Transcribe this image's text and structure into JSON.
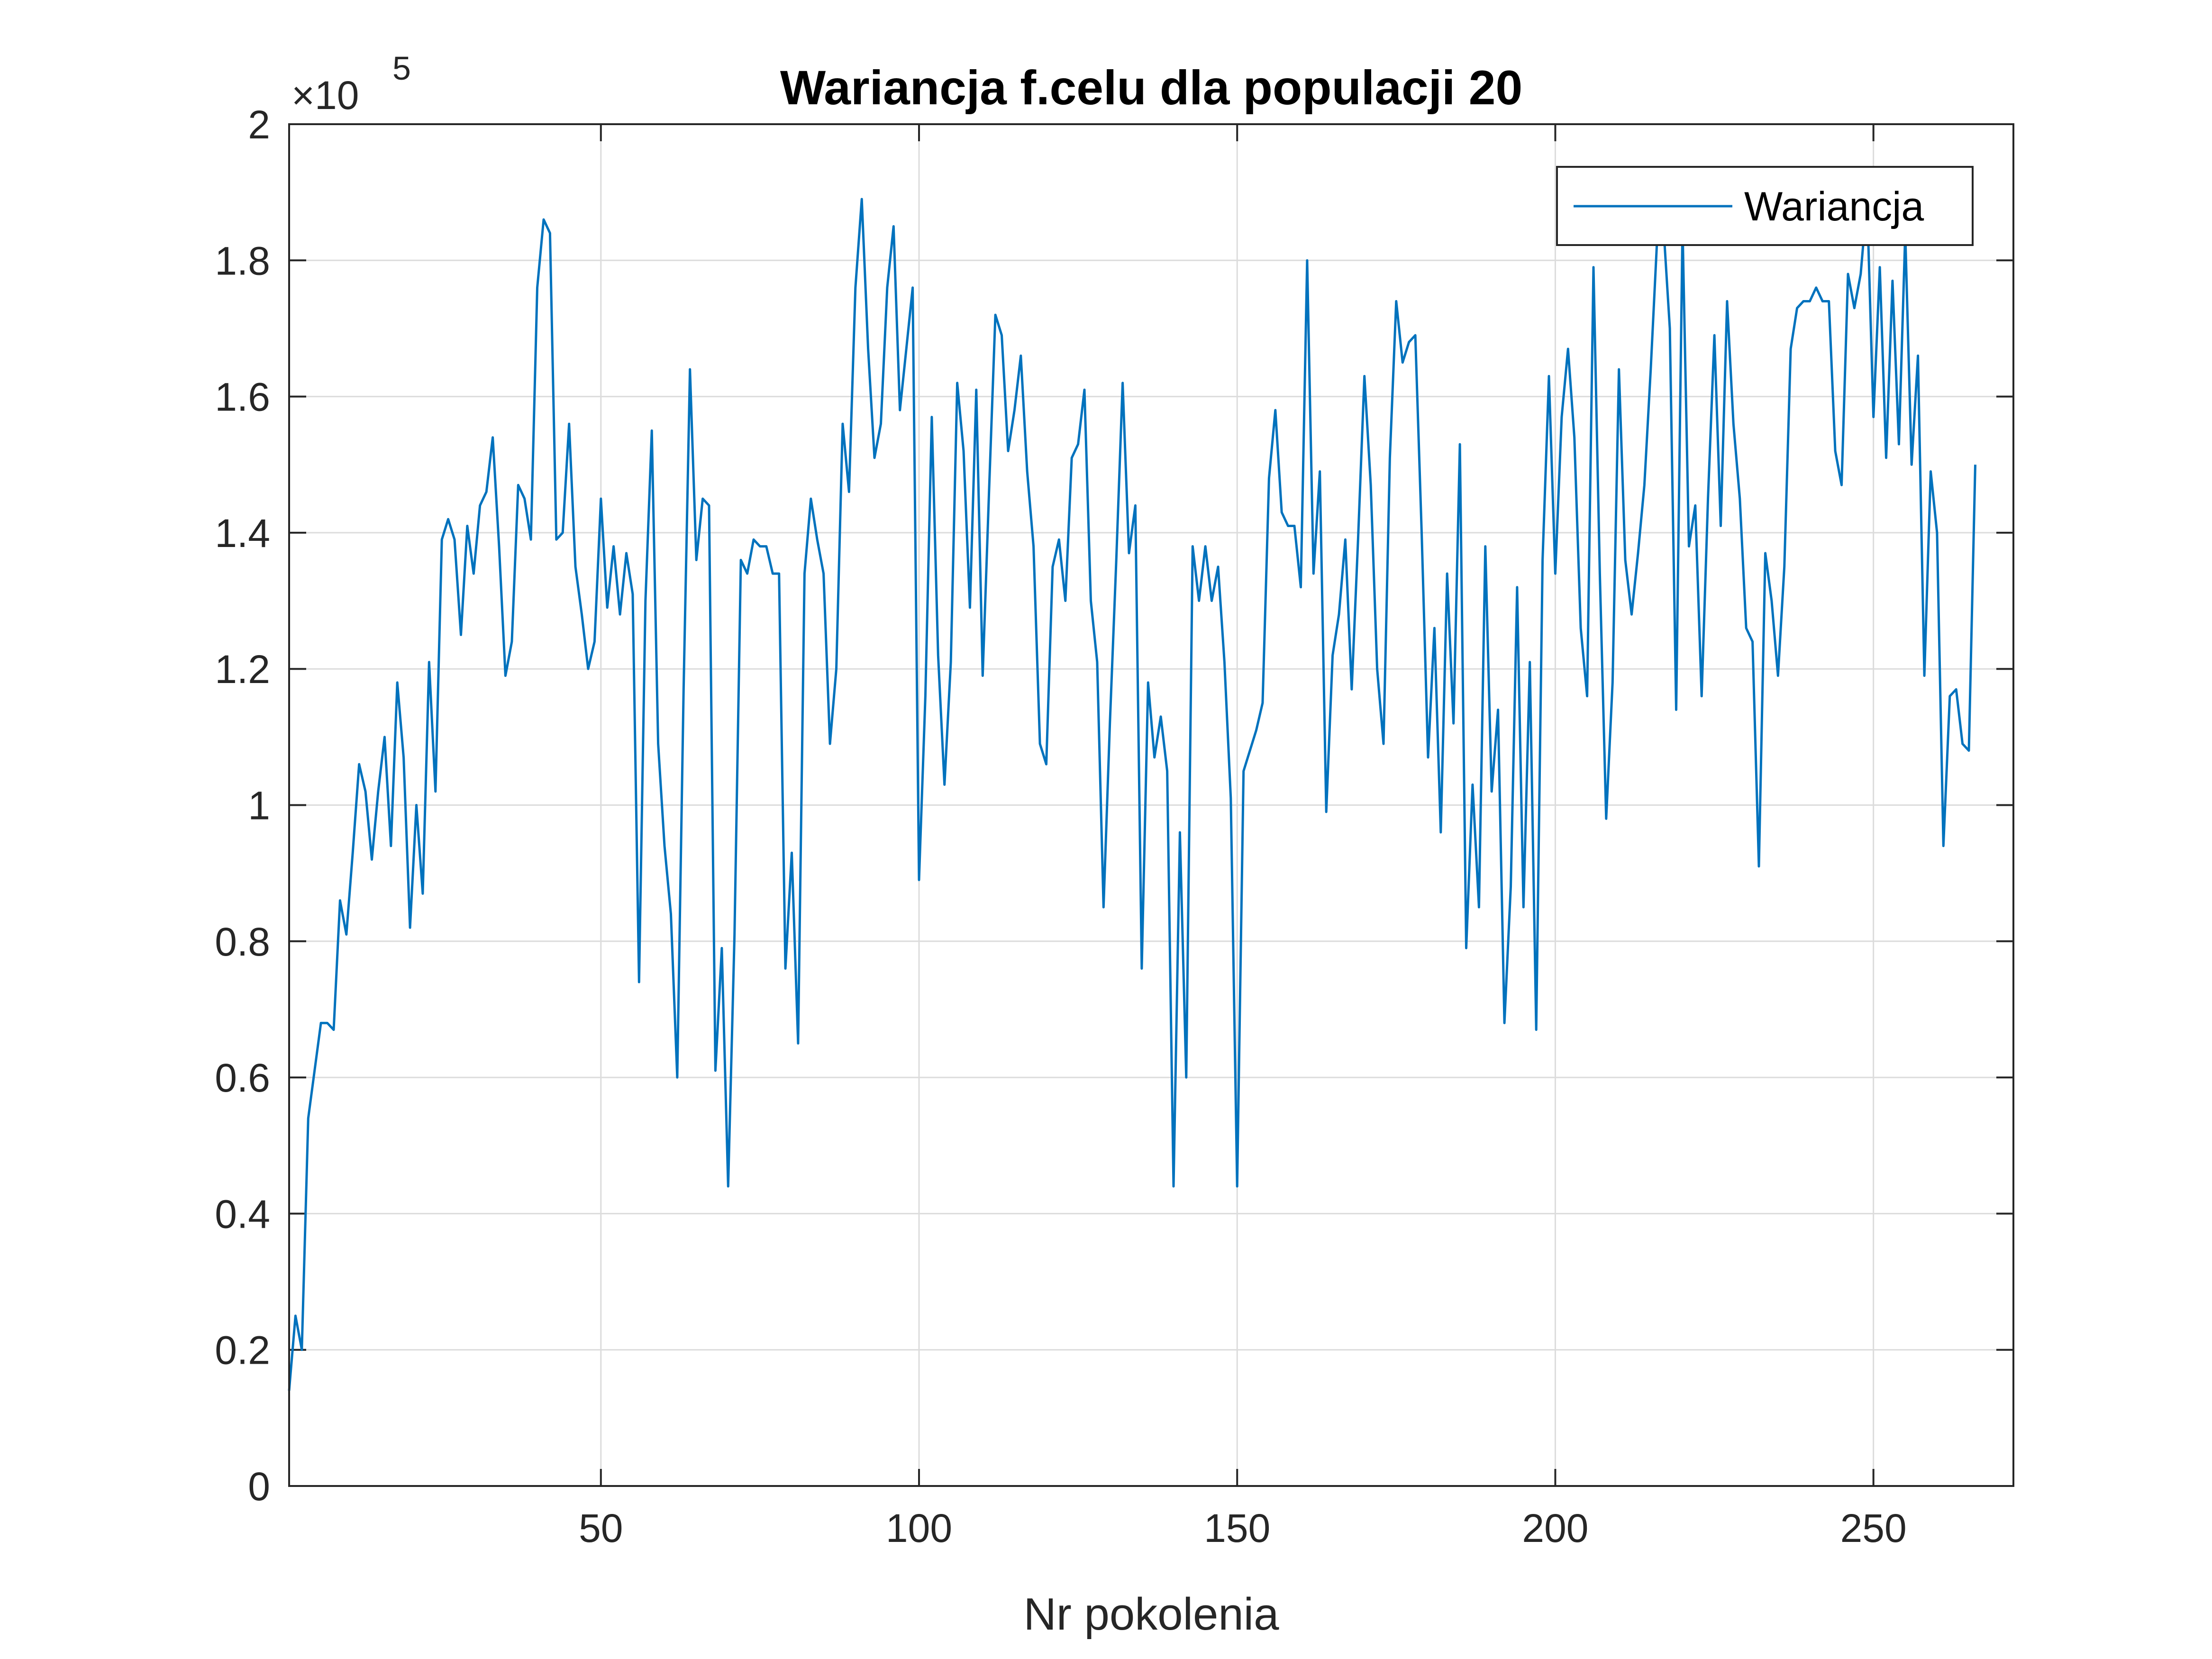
{
  "chart_data": {
    "type": "line",
    "title": "Wariancja f.celu dla populacji 20",
    "xlabel": "Nr pokolenia",
    "ylabel": "",
    "xlim": [
      1,
      272
    ],
    "ylim": [
      0,
      2
    ],
    "y_exponent_base": "×10",
    "y_exponent_power": "5",
    "xticks": [
      50,
      100,
      150,
      200,
      250
    ],
    "xtick_labels": [
      "50",
      "100",
      "150",
      "200",
      "250"
    ],
    "yticks": [
      0,
      0.2,
      0.4,
      0.6,
      0.8,
      1,
      1.2,
      1.4,
      1.6,
      1.8,
      2
    ],
    "ytick_labels": [
      "0",
      "0.2",
      "0.4",
      "0.6",
      "0.8",
      "1",
      "1.2",
      "1.4",
      "1.6",
      "1.8",
      "2"
    ],
    "grid": true,
    "legend_position": "top-right",
    "series": [
      {
        "name": "Wariancja",
        "color": "#0072BD",
        "values": [
          0.14,
          0.25,
          0.2,
          0.54,
          0.61,
          0.68,
          0.68,
          0.67,
          0.86,
          0.81,
          0.93,
          1.06,
          1.02,
          0.92,
          1.02,
          1.1,
          0.94,
          1.18,
          1.07,
          0.82,
          1.0,
          0.87,
          1.21,
          1.02,
          1.39,
          1.42,
          1.39,
          1.25,
          1.41,
          1.34,
          1.44,
          1.46,
          1.54,
          1.38,
          1.19,
          1.24,
          1.47,
          1.45,
          1.39,
          1.76,
          1.86,
          1.84,
          1.39,
          1.4,
          1.56,
          1.35,
          1.28,
          1.2,
          1.24,
          1.45,
          1.29,
          1.38,
          1.28,
          1.37,
          1.31,
          0.74,
          1.3,
          1.55,
          1.09,
          0.94,
          0.84,
          0.6,
          1.17,
          1.64,
          1.36,
          1.45,
          1.44,
          0.61,
          0.79,
          0.44,
          0.81,
          1.36,
          1.34,
          1.39,
          1.38,
          1.38,
          1.34,
          1.34,
          0.76,
          0.93,
          0.65,
          1.34,
          1.45,
          1.39,
          1.34,
          1.09,
          1.2,
          1.56,
          1.46,
          1.76,
          1.89,
          1.67,
          1.51,
          1.56,
          1.76,
          1.85,
          1.58,
          1.67,
          1.76,
          0.89,
          1.16,
          1.57,
          1.22,
          1.03,
          1.21,
          1.62,
          1.52,
          1.29,
          1.61,
          1.19,
          1.46,
          1.72,
          1.69,
          1.52,
          1.58,
          1.66,
          1.49,
          1.38,
          1.09,
          1.06,
          1.35,
          1.39,
          1.3,
          1.51,
          1.53,
          1.61,
          1.3,
          1.21,
          0.85,
          1.12,
          1.36,
          1.62,
          1.37,
          1.44,
          0.76,
          1.18,
          1.07,
          1.13,
          1.05,
          0.44,
          0.96,
          0.6,
          1.38,
          1.3,
          1.38,
          1.3,
          1.35,
          1.21,
          1.01,
          0.44,
          1.05,
          1.08,
          1.11,
          1.15,
          1.48,
          1.58,
          1.43,
          1.41,
          1.41,
          1.32,
          1.8,
          1.34,
          1.49,
          0.99,
          1.22,
          1.28,
          1.39,
          1.17,
          1.39,
          1.63,
          1.47,
          1.2,
          1.09,
          1.51,
          1.74,
          1.65,
          1.68,
          1.69,
          1.4,
          1.07,
          1.26,
          0.96,
          1.34,
          1.12,
          1.53,
          0.79,
          1.03,
          0.85,
          1.38,
          1.02,
          1.14,
          0.68,
          0.88,
          1.32,
          0.85,
          1.21,
          0.67,
          1.36,
          1.63,
          1.34,
          1.57,
          1.67,
          1.54,
          1.26,
          1.16,
          1.79,
          1.34,
          0.98,
          1.18,
          1.64,
          1.36,
          1.28,
          1.37,
          1.47,
          1.64,
          1.83,
          1.85,
          1.7,
          1.14,
          1.85,
          1.38,
          1.44,
          1.16,
          1.45,
          1.69,
          1.41,
          1.74,
          1.56,
          1.45,
          1.26,
          1.24,
          0.91,
          1.37,
          1.3,
          1.19,
          1.35,
          1.67,
          1.73,
          1.74,
          1.74,
          1.76,
          1.74,
          1.74,
          1.52,
          1.47,
          1.78,
          1.73,
          1.78,
          1.89,
          1.57,
          1.79,
          1.51,
          1.77,
          1.53,
          1.84,
          1.5,
          1.66,
          1.19,
          1.49,
          1.4,
          0.94,
          1.16,
          1.17,
          1.09,
          1.08,
          1.5
        ]
      }
    ]
  }
}
